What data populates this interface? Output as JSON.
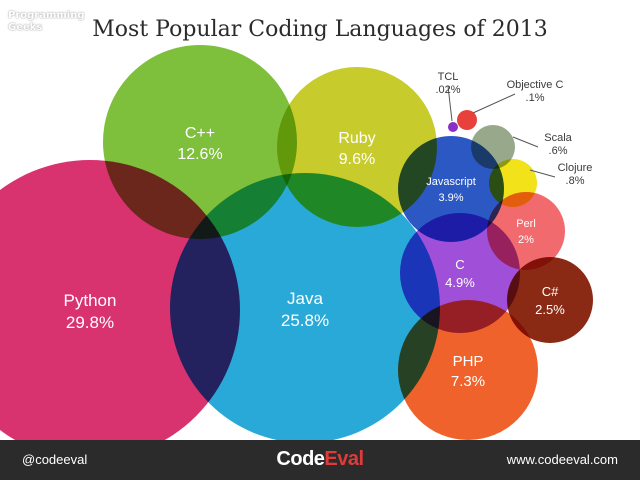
{
  "watermark": "Programming\nGeeks",
  "chart_data": {
    "type": "bubble",
    "title": "Most Popular Coding Languages of 2013",
    "series": [
      {
        "name": "Python",
        "label": "29.8%",
        "value": 29.8,
        "color": "#d9336f"
      },
      {
        "name": "Java",
        "label": "25.8%",
        "value": 25.8,
        "color": "#29a9d8"
      },
      {
        "name": "C++",
        "label": "12.6%",
        "value": 12.6,
        "color": "#7ebf3c"
      },
      {
        "name": "Ruby",
        "label": "9.6%",
        "value": 9.6,
        "color": "#c7cc2c"
      },
      {
        "name": "PHP",
        "label": "7.3%",
        "value": 7.3,
        "color": "#f0622b"
      },
      {
        "name": "C",
        "label": "4.9%",
        "value": 4.9,
        "color": "#a04fd9"
      },
      {
        "name": "Javascript",
        "label": "3.9%",
        "value": 3.9,
        "color": "#2c58c4"
      },
      {
        "name": "C#",
        "label": "2.5%",
        "value": 2.5,
        "color": "#8a2a14"
      },
      {
        "name": "Perl",
        "label": "2%",
        "value": 2.0,
        "color": "#f06a6e"
      },
      {
        "name": "Clojure",
        "label": ".8%",
        "value": 0.8,
        "color": "#f2e21a"
      },
      {
        "name": "Scala",
        "label": ".6%",
        "value": 0.6,
        "color": "#97a98a"
      },
      {
        "name": "Objective C",
        "label": ".1%",
        "value": 0.1,
        "color": "#e8403a"
      },
      {
        "name": "TCL",
        "label": ".02%",
        "value": 0.02,
        "color": "#8a2ec7"
      }
    ]
  },
  "footer": {
    "handle": "@codeeval",
    "logo_main": "Code",
    "logo_accent": "Eval",
    "url": "www.codeeval.com"
  }
}
